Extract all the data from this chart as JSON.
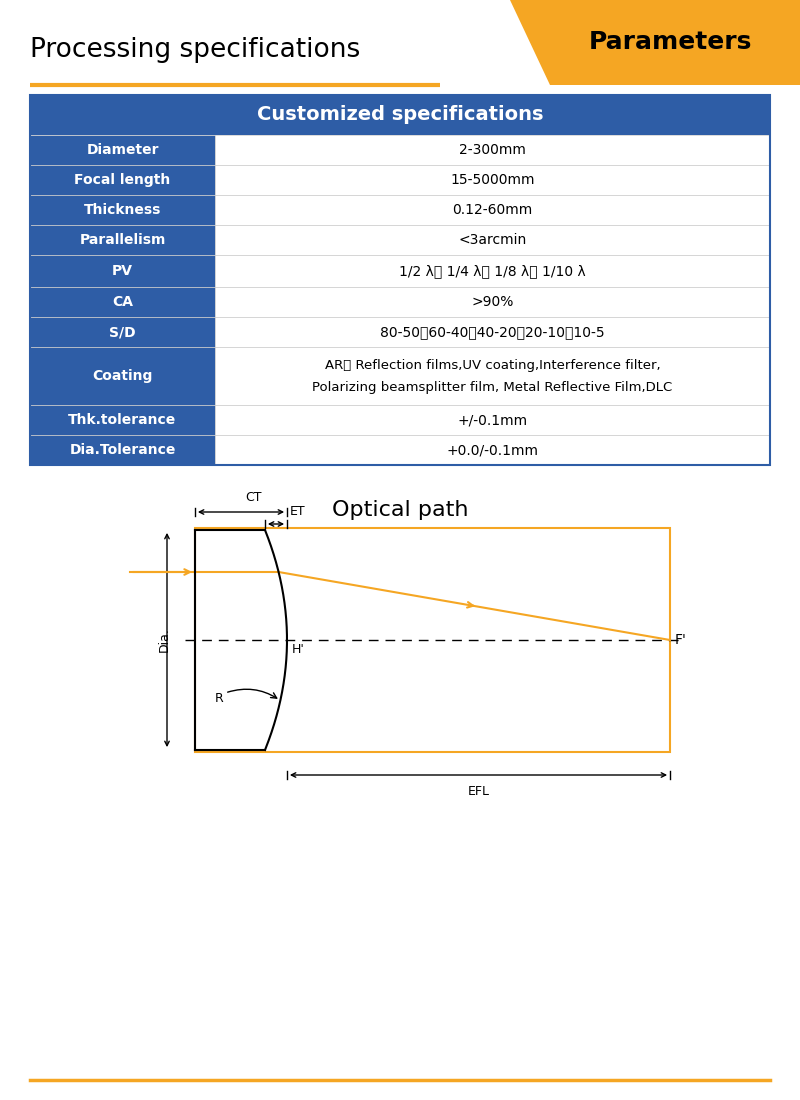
{
  "title_left": "Processing specifications",
  "title_right": "Parameters",
  "header": "Customized specifications",
  "rows": [
    [
      "Diameter",
      "2-300mm"
    ],
    [
      "Focal length",
      "15-5000mm"
    ],
    [
      "Thickness",
      "0.12-60mm"
    ],
    [
      "Parallelism",
      "<3arcmin"
    ],
    [
      "PV",
      "1/2 λ、 1/4 λ、 1/8 λ、 1/10 λ"
    ],
    [
      "CA",
      ">90%"
    ],
    [
      "S/D",
      "80-50、60-40、40-20、20-10、10-5"
    ],
    [
      "Coating",
      "AR、 Reflection films,UV coating,Interference filter,\nPolarizing beamsplitter film, Metal Reflective Film,DLC"
    ],
    [
      "Thk.tolerance",
      "+/-0.1mm"
    ],
    [
      "Dia.Tolerance",
      "+0.0/-0.1mm"
    ]
  ],
  "header_bg": "#2E5DA6",
  "header_fg": "#FFFFFF",
  "row_label_bg": "#2E5DA6",
  "row_label_fg": "#FFFFFF",
  "row_value_bg": "#FFFFFF",
  "row_value_fg": "#000000",
  "title_color": "#000000",
  "orange_color": "#F5A623",
  "optical_path_title": "Optical path",
  "footer_line_color": "#F5A623"
}
